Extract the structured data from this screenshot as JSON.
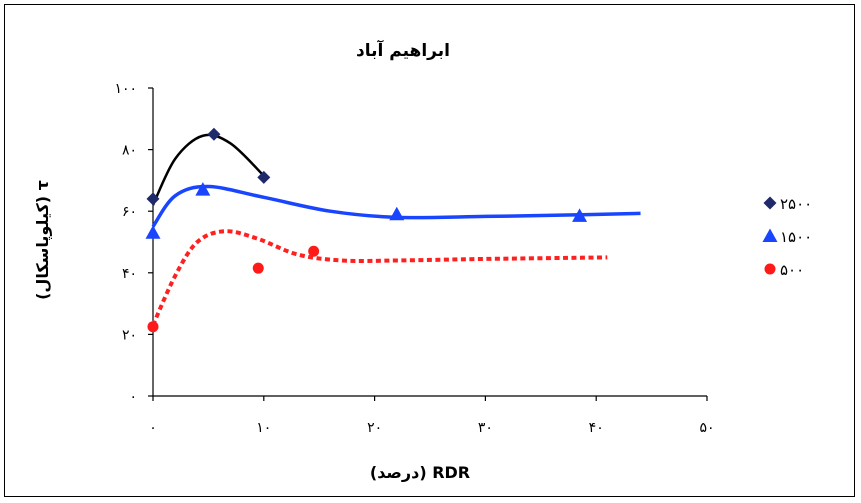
{
  "chart_data": {
    "type": "scatter",
    "title": "ابراهیم آباد",
    "xlabel": "RDR (درصد)",
    "ylabel": "τ (کیلوپاسکال)",
    "xlim": [
      0,
      50
    ],
    "ylim": [
      0,
      100
    ],
    "x_tick_labels": [
      "۰",
      "۱۰",
      "۲۰",
      "۳۰",
      "۴۰",
      "۵۰"
    ],
    "y_tick_labels": [
      "۰",
      "۲۰",
      "۴۰",
      "۶۰",
      "۸۰",
      "۱۰۰"
    ],
    "grid": false,
    "legend_position": "right",
    "series": [
      {
        "name": "۲۵۰۰",
        "marker": "diamond",
        "color": "#1f2a6b",
        "points": [
          [
            0,
            64
          ],
          [
            5.5,
            85
          ],
          [
            10,
            71
          ]
        ],
        "trend_color": "#000000",
        "trend_style": "solid",
        "trend": [
          [
            0,
            62
          ],
          [
            2,
            77
          ],
          [
            4.5,
            84.5
          ],
          [
            7,
            82
          ],
          [
            10,
            71.5
          ]
        ]
      },
      {
        "name": "۱۵۰۰",
        "marker": "triangle",
        "color": "#1a45ff",
        "points": [
          [
            0,
            53
          ],
          [
            4.5,
            67
          ],
          [
            22,
            59
          ],
          [
            38.5,
            58.5
          ]
        ],
        "trend_color": "#1a45ff",
        "trend_style": "solid",
        "trend": [
          [
            0,
            55
          ],
          [
            2,
            65
          ],
          [
            5,
            68
          ],
          [
            10,
            64.5
          ],
          [
            16,
            60
          ],
          [
            22,
            58
          ],
          [
            30,
            58.3
          ],
          [
            38,
            58.8
          ],
          [
            44,
            59.3
          ]
        ]
      },
      {
        "name": "۵۰۰",
        "marker": "circle",
        "color": "#ff1a1a",
        "points": [
          [
            0,
            22.5
          ],
          [
            9.5,
            41.5
          ],
          [
            14.5,
            47
          ]
        ],
        "trend_color": "#ff2020",
        "trend_style": "dotted",
        "trend": [
          [
            0,
            23
          ],
          [
            2,
            39
          ],
          [
            4,
            50
          ],
          [
            6.5,
            53.5
          ],
          [
            9.5,
            51
          ],
          [
            13,
            46
          ],
          [
            17,
            44
          ],
          [
            22,
            44
          ],
          [
            30,
            44.5
          ],
          [
            41,
            45
          ]
        ]
      }
    ]
  }
}
